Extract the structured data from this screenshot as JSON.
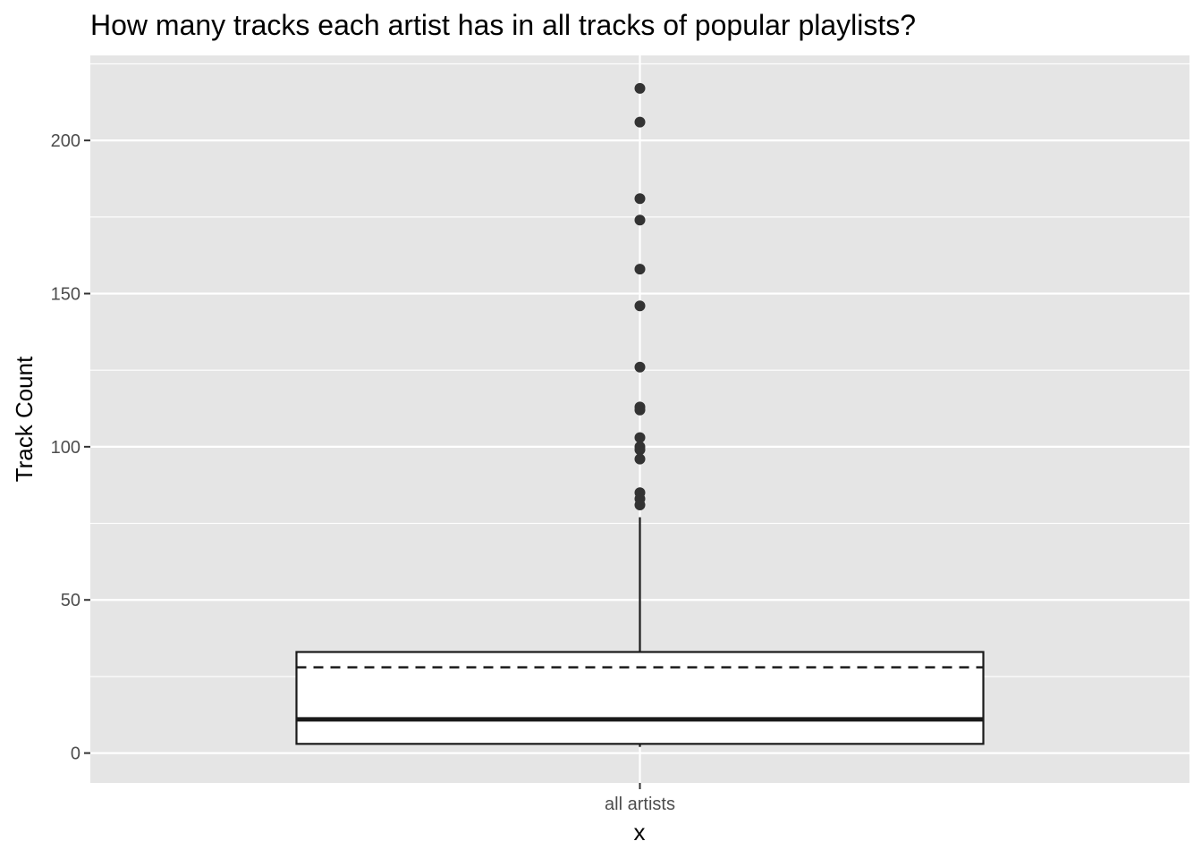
{
  "chart_data": {
    "type": "box",
    "title": "How many tracks each artist has in all tracks of popular playlists?",
    "xlabel": "x",
    "ylabel": "Track Count",
    "categories": [
      "all artists"
    ],
    "ylim": [
      -10,
      228
    ],
    "y_ticks": [
      0,
      50,
      100,
      150,
      200
    ],
    "y_tick_labels": [
      "0",
      "50",
      "100",
      "150",
      "200"
    ],
    "grid": true,
    "box": {
      "category": "all artists",
      "whisker_low": 2,
      "q1": 3,
      "median": 11,
      "mean": 28,
      "q3": 33,
      "whisker_high": 77
    },
    "outliers": [
      217,
      206,
      181,
      174,
      158,
      146,
      126,
      113,
      112,
      103,
      100,
      99,
      96,
      85,
      83,
      81
    ],
    "colors": {
      "panel": "#e5e5e5",
      "grid": "#ffffff",
      "box_fill": "#ffffff",
      "box_line": "#1a1a1a",
      "point": "#333333"
    }
  }
}
